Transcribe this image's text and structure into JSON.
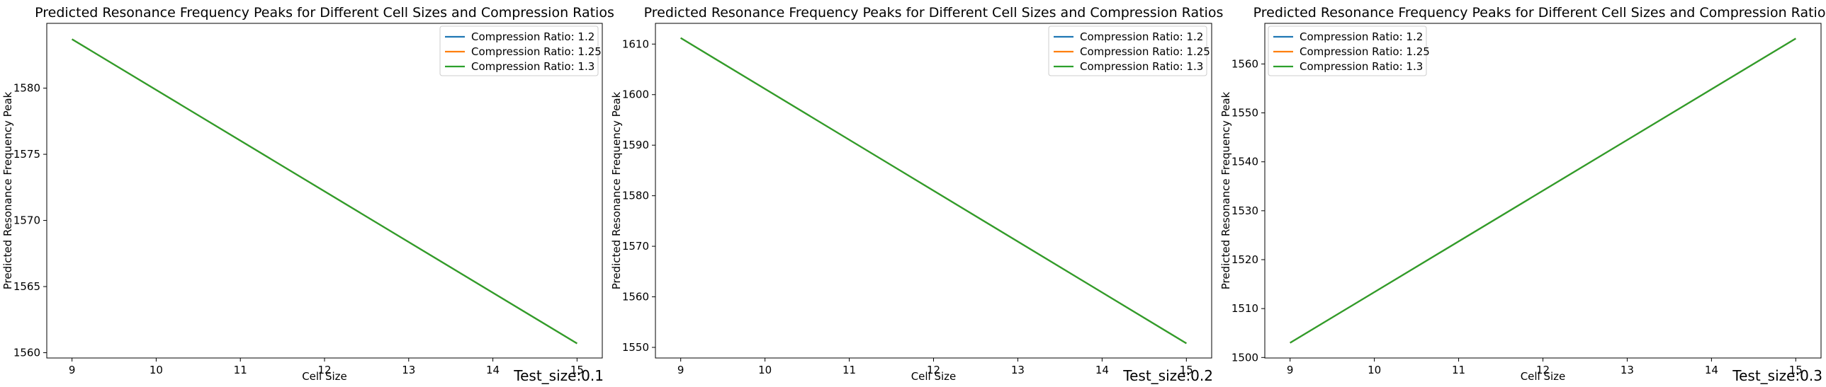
{
  "chart_data": [
    {
      "type": "line",
      "title": "Predicted Resonance Frequency Peaks for Different Cell Sizes and Compression Ratios",
      "xlabel": "Cell Size",
      "ylabel": "Predicted Resonance Frequency Peak",
      "annotation": "Test_size:0.1",
      "xlim": [
        8.7,
        15.3
      ],
      "ylim": [
        1559.6,
        1584.9
      ],
      "xticks": [
        9,
        10,
        11,
        12,
        13,
        14,
        15
      ],
      "yticks": [
        1560,
        1565,
        1570,
        1575,
        1580
      ],
      "x": [
        9,
        15
      ],
      "series": [
        {
          "name": "Compression Ratio: 1.2",
          "color": "#1f77b4",
          "values": [
            1583.7,
            1560.7
          ]
        },
        {
          "name": "Compression Ratio: 1.25",
          "color": "#ff7f0e",
          "values": [
            1583.7,
            1560.7
          ]
        },
        {
          "name": "Compression Ratio: 1.3",
          "color": "#2ca02c",
          "values": [
            1583.7,
            1560.7
          ]
        }
      ],
      "legend_position": "top-right"
    },
    {
      "type": "line",
      "title": "Predicted Resonance Frequency Peaks for Different Cell Sizes and Compression Ratios",
      "xlabel": "Cell Size",
      "ylabel": "Predicted Resonance Frequency Peak",
      "annotation": "Test_size:0.2",
      "xlim": [
        8.7,
        15.3
      ],
      "ylim": [
        1547.9,
        1614.1
      ],
      "xticks": [
        9,
        10,
        11,
        12,
        13,
        14,
        15
      ],
      "yticks": [
        1550,
        1560,
        1570,
        1580,
        1590,
        1600,
        1610
      ],
      "x": [
        9,
        15
      ],
      "series": [
        {
          "name": "Compression Ratio: 1.2",
          "color": "#1f77b4",
          "values": [
            1611.2,
            1550.8
          ]
        },
        {
          "name": "Compression Ratio: 1.25",
          "color": "#ff7f0e",
          "values": [
            1611.2,
            1550.8
          ]
        },
        {
          "name": "Compression Ratio: 1.3",
          "color": "#2ca02c",
          "values": [
            1611.2,
            1550.8
          ]
        }
      ],
      "legend_position": "top-right"
    },
    {
      "type": "line",
      "title": "Predicted Resonance Frequency Peaks for Different Cell Sizes and Compression Ratios",
      "xlabel": "Cell Size",
      "ylabel": "Predicted Resonance Frequency Peak",
      "annotation": "Test_size:0.3",
      "xlim": [
        8.7,
        15.3
      ],
      "ylim": [
        1499.9,
        1568.3
      ],
      "xticks": [
        9,
        10,
        11,
        12,
        13,
        14,
        15
      ],
      "yticks": [
        1500,
        1510,
        1520,
        1530,
        1540,
        1550,
        1560
      ],
      "x": [
        9,
        15
      ],
      "series": [
        {
          "name": "Compression Ratio: 1.2",
          "color": "#1f77b4",
          "values": [
            1503.0,
            1565.2
          ]
        },
        {
          "name": "Compression Ratio: 1.25",
          "color": "#ff7f0e",
          "values": [
            1503.0,
            1565.2
          ]
        },
        {
          "name": "Compression Ratio: 1.3",
          "color": "#2ca02c",
          "values": [
            1503.0,
            1565.2
          ]
        }
      ],
      "legend_position": "top-left"
    }
  ]
}
